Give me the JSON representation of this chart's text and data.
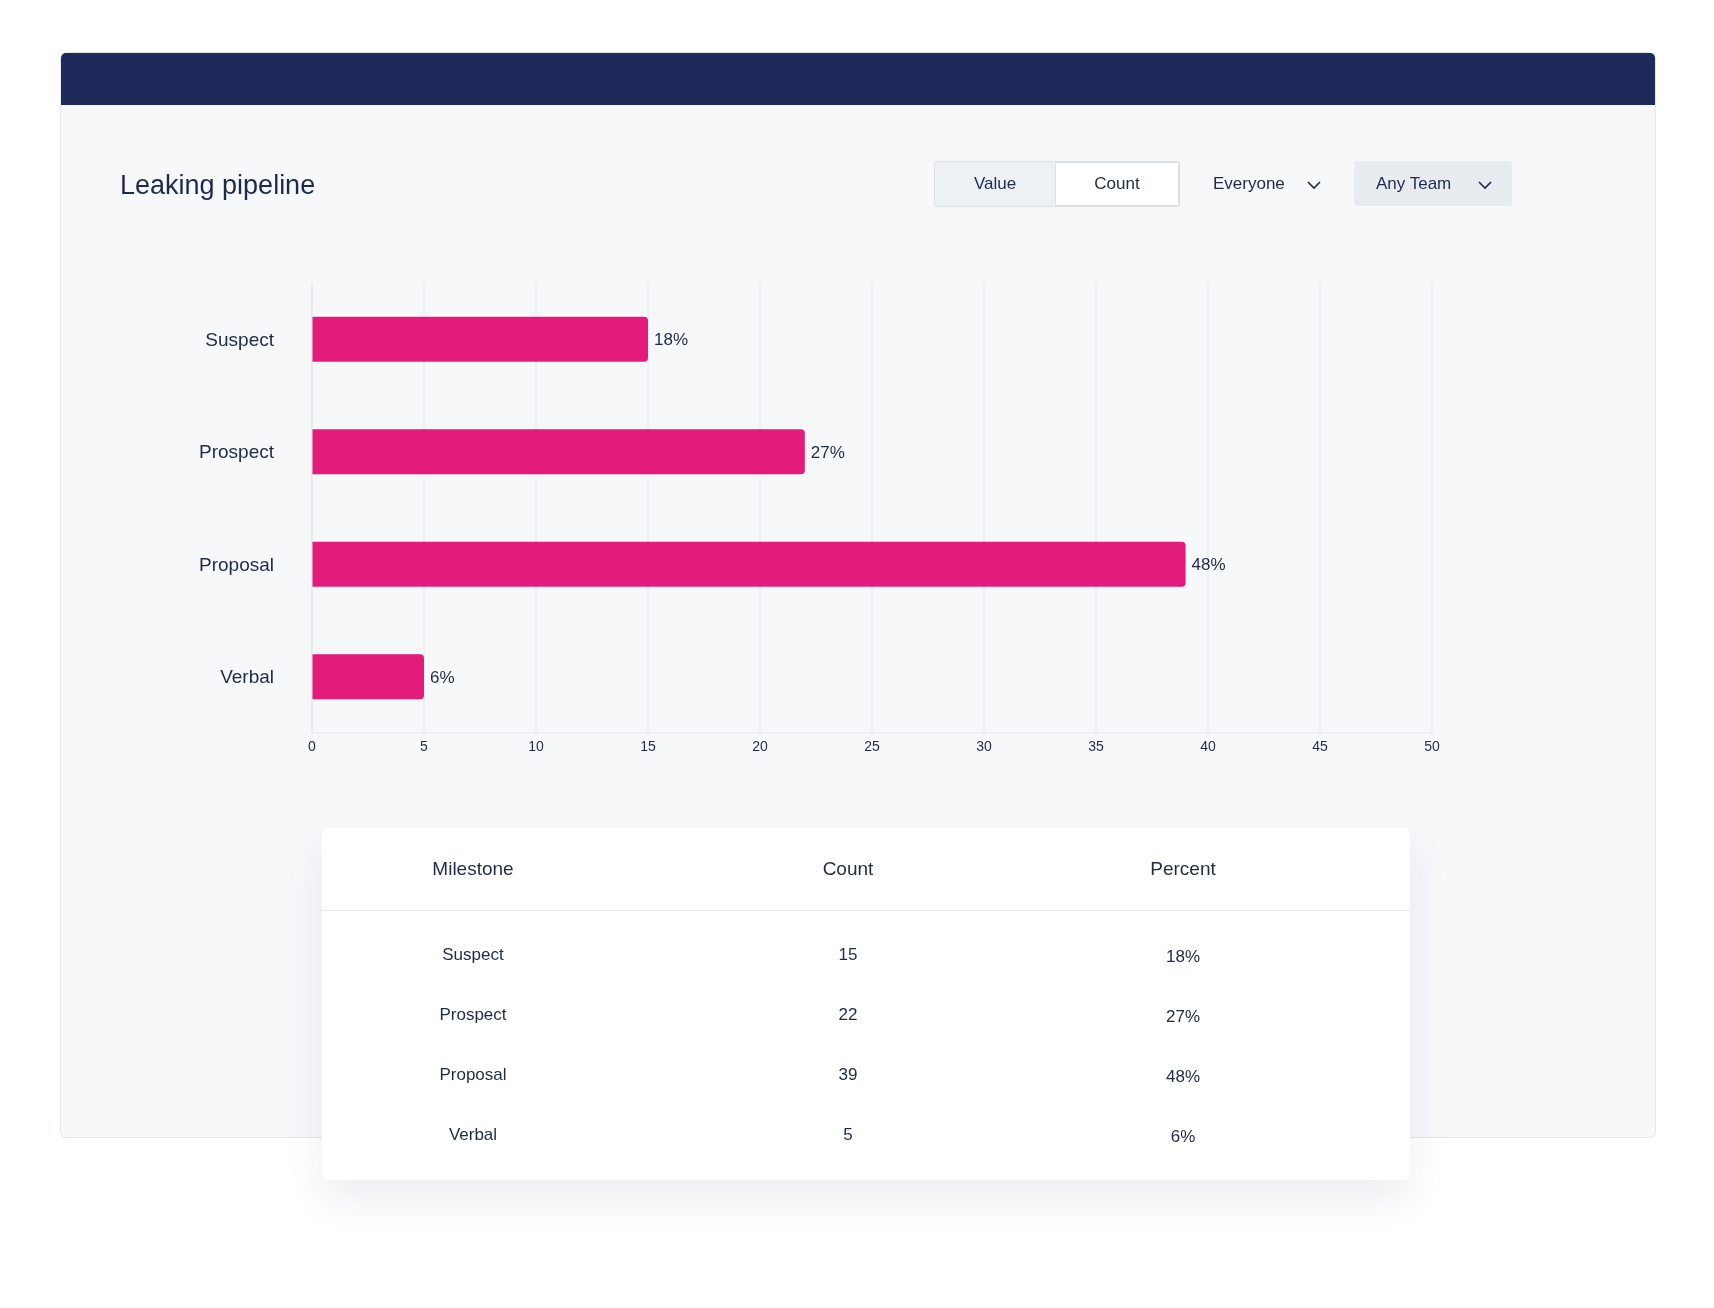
{
  "chart_data": {
    "type": "bar",
    "orientation": "horizontal",
    "title": "Leaking pipeline",
    "categories": [
      "Suspect",
      "Prospect",
      "Proposal",
      "Verbal"
    ],
    "values": [
      15,
      22,
      39,
      5
    ],
    "color": "#e31b7b",
    "xlim": [
      0,
      50
    ],
    "xticks": [
      0,
      5,
      10,
      15,
      20,
      25,
      30,
      35,
      40,
      45,
      50
    ],
    "grid": "x",
    "annotations": [
      "Value",
      "Count",
      "Everyone",
      "Any Team",
      "Milestone",
      "Count",
      "Percent",
      "15",
      "22",
      "39",
      "5",
      {
        "text": "18%",
        "x": 15,
        "y": "Suspect"
      },
      {
        "text": "27%",
        "x": 22,
        "y": "Prospect"
      },
      {
        "text": "48%",
        "x": 39,
        "y": "Proposal"
      },
      {
        "text": "6%",
        "x": 5,
        "y": "Verbal"
      }
    ]
  }
}
